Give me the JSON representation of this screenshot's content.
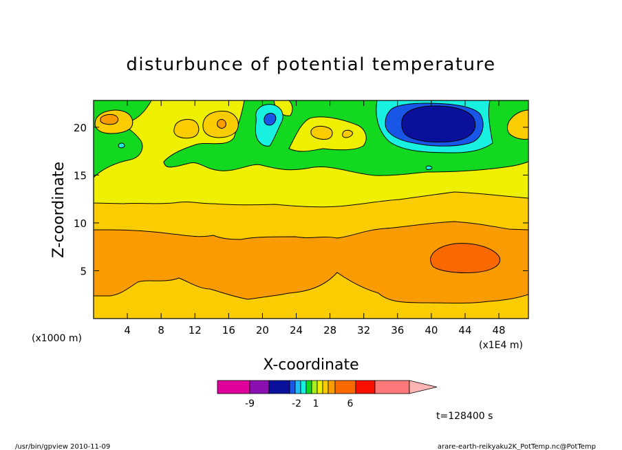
{
  "chart_data": {
    "type": "heatmap",
    "title": "disturbunce of potential temperature",
    "xlabel": "X-coordinate",
    "ylabel": "Z-coordinate",
    "x_unit_left": "(x1000 m)",
    "x_unit_right": "(x1E4 m)",
    "xlim": [
      0,
      51.5
    ],
    "ylim": [
      0,
      22.8
    ],
    "x_ticks": [
      4,
      8,
      12,
      16,
      20,
      24,
      28,
      32,
      36,
      40,
      44,
      48
    ],
    "y_ticks": [
      5,
      10,
      15,
      20
    ],
    "colorbar": {
      "colors": [
        "#e0009c",
        "#8a10b0",
        "#0b109c",
        "#1856e8",
        "#20bcfa",
        "#18f0e0",
        "#12d820",
        "#a8f020",
        "#eef000",
        "#fbcc00",
        "#fa9c00",
        "#fa6800",
        "#fa1000",
        "#fa7878",
        "#ffb4b4"
      ],
      "tick_labels": [
        "-9",
        "-2",
        "1",
        "6"
      ]
    },
    "time_label": "t=128400 s",
    "footer_left": "/usr/bin/gpview  2010-11-09",
    "footer_right": "arare-earth-reikyaku2K_PotTemp.nc@PotTemp",
    "field": {
      "bands": [
        {
          "zmax": 2.3,
          "level": "3-4"
        },
        {
          "zmax": 9.4,
          "level": "4-5"
        },
        {
          "zmax": 12.2,
          "level": "3-4"
        },
        {
          "zmax": 17.0,
          "level": "2-3"
        },
        {
          "zmax": 22.8,
          "level": "1-2"
        }
      ],
      "features": [
        {
          "name": "cold-core",
          "x": 40.5,
          "z": 20.4,
          "value": "-2 or below"
        },
        {
          "name": "warm-core",
          "x": 43.5,
          "z": 6.3,
          "value": "5-6"
        },
        {
          "name": "cold-spot",
          "x": 21.0,
          "z": 21.0,
          "value": "-2 to -1"
        }
      ]
    }
  }
}
